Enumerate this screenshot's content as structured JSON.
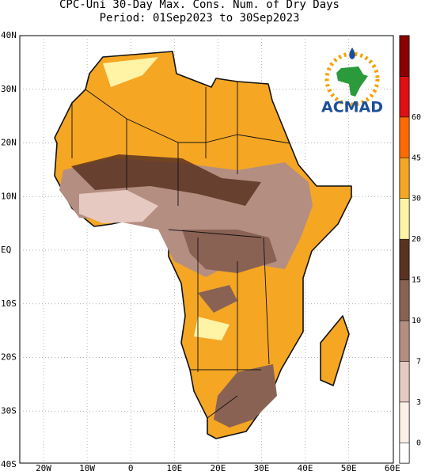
{
  "title": [
    "CPC-Uni 30-Day Max. Cons. Num. of Dry Days",
    "Period: 01Sep2023 to 30Sep2023"
  ],
  "logo": "ACMAD",
  "x_axis": {
    "labels": [
      "20W",
      "10W",
      "0",
      "10E",
      "20E",
      "30E",
      "40E",
      "50E",
      "60E"
    ]
  },
  "y_axis": {
    "labels": [
      "40N",
      "30N",
      "20N",
      "10N",
      "EQ",
      "10S",
      "20S",
      "30S",
      "40S"
    ]
  },
  "colorbar": {
    "labels": [
      0,
      3,
      7,
      10,
      15,
      20,
      30,
      45,
      60
    ],
    "colors": [
      "#ffffff",
      "#fbefe6",
      "#e6cac2",
      "#b58e82",
      "#8a6254",
      "#5a3222",
      "#fff3a6",
      "#f5a623",
      "#ff6a00",
      "#e01010",
      "#8b0000"
    ]
  }
}
